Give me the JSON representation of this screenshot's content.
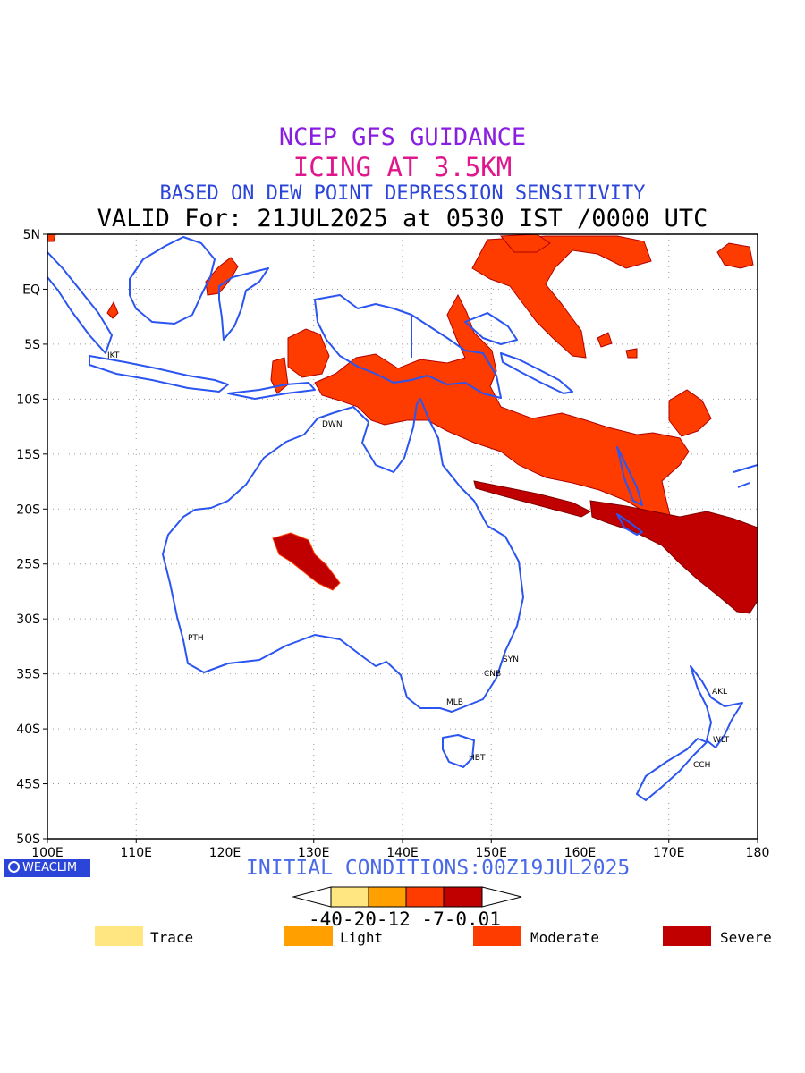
{
  "titles": {
    "line1": "NCEP GFS GUIDANCE",
    "line2": "ICING AT 3.5KM",
    "line3": "BASED ON DEW POINT DEPRESSION SENSITIVITY",
    "line4": "VALID For: 21JUL2025 at 0530 IST /0000 UTC"
  },
  "colors": {
    "title1": "#8a1ee0",
    "title2": "#e0178c",
    "title3": "#2b45d8",
    "title4": "#000000",
    "coastline": "#2b55f0",
    "initial": "#4a6ae8",
    "trace": "#ffe680",
    "light": "#ffa000",
    "moderate": "#ff3c00",
    "severe": "#c00000"
  },
  "map": {
    "lat_labels": [
      "5N",
      "EQ",
      "5S",
      "10S",
      "15S",
      "20S",
      "25S",
      "30S",
      "35S",
      "40S",
      "45S",
      "50S"
    ],
    "lon_labels": [
      "100E",
      "110E",
      "120E",
      "130E",
      "140E",
      "150E",
      "160E",
      "170E",
      "180"
    ],
    "cities": [
      "JKT",
      "DWN",
      "PTH",
      "SYN",
      "CNB",
      "MLB",
      "HBT",
      "AKL",
      "WLT",
      "CCH"
    ]
  },
  "branding": {
    "logo": "WEACLIM"
  },
  "initial_conditions": "INITIAL CONDITIONS:00Z19JUL2025",
  "colorbar": {
    "ticks": "-40-20-12 -7-0.01"
  },
  "legend": [
    {
      "label": "Trace",
      "color": "#ffe680"
    },
    {
      "label": "Light",
      "color": "#ffa000"
    },
    {
      "label": "Moderate",
      "color": "#ff3c00"
    },
    {
      "label": "Severe",
      "color": "#c00000"
    }
  ]
}
